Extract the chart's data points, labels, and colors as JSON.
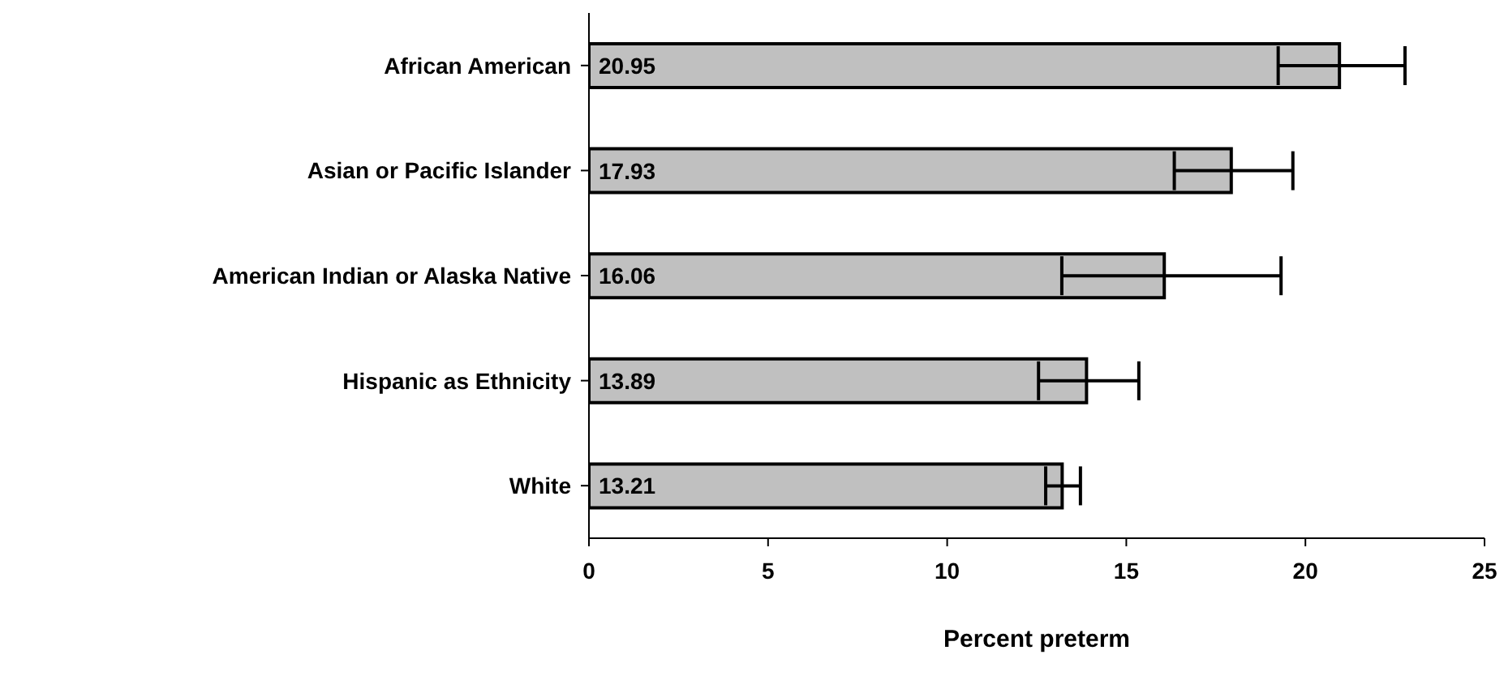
{
  "chart_data": {
    "type": "bar",
    "orientation": "horizontal",
    "xlabel": "Percent preterm",
    "categories": [
      "African American",
      "Asian or Pacific Islander",
      "American Indian or Alaska Native",
      "Hispanic as Ethnicity",
      "White"
    ],
    "values": [
      20.95,
      17.93,
      16.06,
      13.89,
      13.21
    ],
    "errors": [
      [
        19.24,
        22.78
      ],
      [
        16.34,
        19.65
      ],
      [
        13.2,
        19.32
      ],
      [
        12.55,
        15.35
      ],
      [
        12.75,
        13.72
      ]
    ],
    "color": "#c0c0c0",
    "data_labels": true,
    "xlim": [
      0,
      25
    ],
    "xticks": [
      0,
      5,
      10,
      15,
      20,
      25
    ],
    "grid": false
  }
}
